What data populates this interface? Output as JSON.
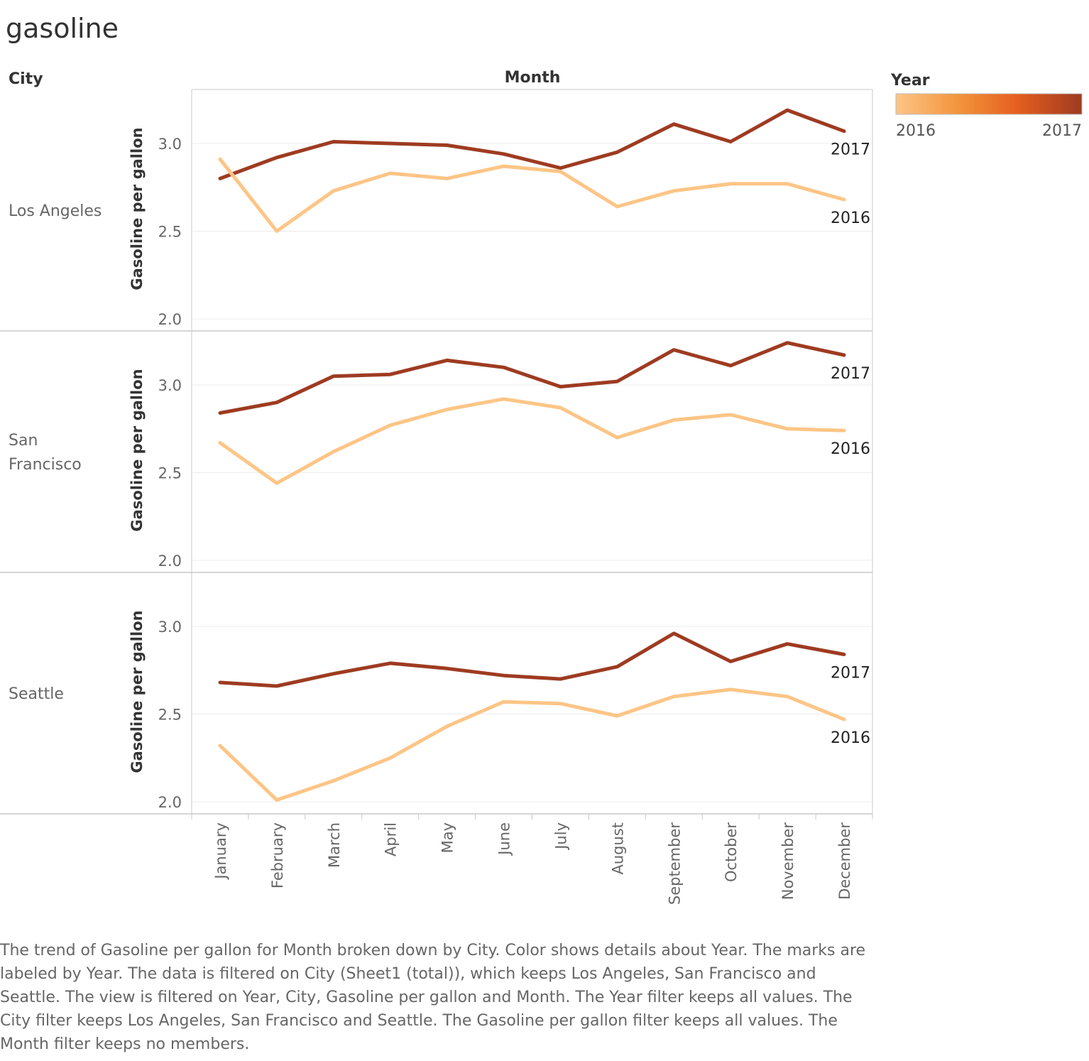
{
  "title": "gasoline",
  "headers": {
    "row_dimension": "City",
    "column_dimension": "Month"
  },
  "legend": {
    "title": "Year",
    "min_label": "2016",
    "max_label": "2017",
    "gradient": [
      "#fdc586",
      "#f2923a",
      "#e55f1f",
      "#9e3b21"
    ]
  },
  "colors": {
    "2016": "#fdc586",
    "2017": "#9e3b21"
  },
  "caption": "The trend of Gasoline per gallon for Month broken down by City.  Color shows details about Year.  The marks are labeled by Year. The data is filtered on City (Sheet1 (total)), which keeps Los Angeles, San Francisco and Seattle. The view is filtered on Year, City, Gasoline per gallon and Month. The Year filter keeps all values. The City filter keeps Los Angeles, San Francisco and Seattle. The Gasoline per gallon filter keeps all values. The Month filter keeps no members.",
  "chart_data": {
    "type": "line",
    "x": [
      "January",
      "February",
      "March",
      "April",
      "May",
      "June",
      "July",
      "August",
      "September",
      "October",
      "November",
      "December"
    ],
    "xlabel": "",
    "ylabel": "Gasoline per gallon",
    "ylim": [
      2.0,
      3.25
    ],
    "yticks": [
      2.0,
      2.5,
      3.0
    ],
    "ytick_labels": [
      "2.0",
      "2.5",
      "3.0"
    ],
    "grid": true,
    "legend_placement": "top-right",
    "panels": [
      {
        "city": "Los Angeles",
        "series": [
          {
            "name": "2017",
            "values": [
              2.8,
              2.92,
              3.01,
              3.0,
              2.99,
              2.94,
              2.86,
              2.95,
              3.11,
              3.01,
              3.19,
              3.07
            ]
          },
          {
            "name": "2016",
            "values": [
              2.91,
              2.5,
              2.73,
              2.83,
              2.8,
              2.87,
              2.84,
              2.64,
              2.73,
              2.77,
              2.77,
              2.68
            ]
          }
        ]
      },
      {
        "city": "San Francisco",
        "series": [
          {
            "name": "2017",
            "values": [
              2.84,
              2.9,
              3.05,
              3.06,
              3.14,
              3.1,
              2.99,
              3.02,
              3.2,
              3.11,
              3.24,
              3.17
            ]
          },
          {
            "name": "2016",
            "values": [
              2.67,
              2.44,
              2.62,
              2.77,
              2.86,
              2.92,
              2.87,
              2.7,
              2.8,
              2.83,
              2.75,
              2.74
            ]
          }
        ]
      },
      {
        "city": "Seattle",
        "series": [
          {
            "name": "2017",
            "values": [
              2.68,
              2.66,
              2.73,
              2.79,
              2.76,
              2.72,
              2.7,
              2.77,
              2.96,
              2.8,
              2.9,
              2.84
            ]
          },
          {
            "name": "2016",
            "values": [
              2.32,
              2.01,
              2.12,
              2.25,
              2.43,
              2.57,
              2.56,
              2.49,
              2.6,
              2.64,
              2.6,
              2.47
            ]
          }
        ]
      }
    ]
  }
}
